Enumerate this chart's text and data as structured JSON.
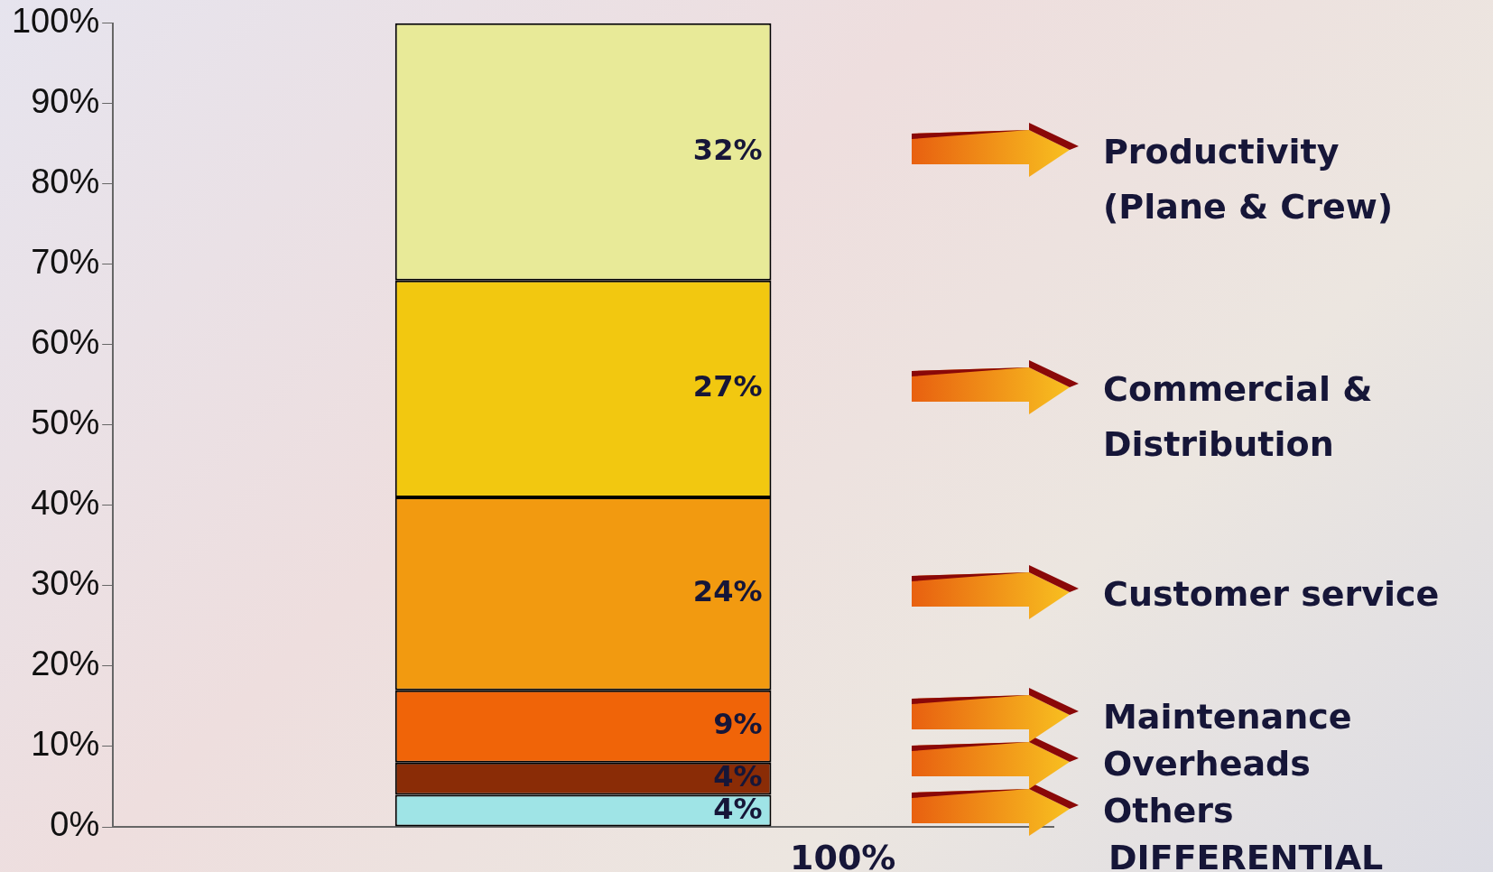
{
  "chart_data": {
    "type": "bar",
    "stacked": true,
    "categories": [
      null
    ],
    "series": [
      {
        "name": "Others",
        "color": "#9fe4e6",
        "values": [
          4
        ],
        "value_labels": [
          "4%"
        ]
      },
      {
        "name": "Overheads",
        "color": "#8a2c06",
        "values": [
          4
        ],
        "value_labels": [
          "4%"
        ]
      },
      {
        "name": "Maintenance",
        "color": "#f06408",
        "values": [
          9
        ],
        "value_labels": [
          "9%"
        ]
      },
      {
        "name": "Customer service",
        "color": "#f29a10",
        "values": [
          24
        ],
        "value_labels": [
          "24%"
        ]
      },
      {
        "name": "Commercial & Distribution",
        "color": "#f2c810",
        "values": [
          27
        ],
        "value_labels": [
          "27%"
        ]
      },
      {
        "name": "Productivity (Plane & Crew)",
        "color": "#e8ea98",
        "values": [
          32
        ],
        "value_labels": [
          "32%"
        ]
      }
    ],
    "ylim": [
      0,
      100
    ],
    "yticks": [
      {
        "value": 0,
        "label": "0%"
      },
      {
        "value": 10,
        "label": "10%"
      },
      {
        "value": 20,
        "label": "20%"
      },
      {
        "value": 30,
        "label": "30%"
      },
      {
        "value": 40,
        "label": "40%"
      },
      {
        "value": 50,
        "label": "50%"
      },
      {
        "value": 60,
        "label": "60%"
      },
      {
        "value": 70,
        "label": "70%"
      },
      {
        "value": 80,
        "label": "80%"
      },
      {
        "value": 90,
        "label": "90%"
      },
      {
        "value": 100,
        "label": "100%"
      }
    ],
    "totals": [
      "100%"
    ],
    "annotations": [
      "DIFFERENTIAL"
    ],
    "grid": false,
    "legend": "right"
  }
}
